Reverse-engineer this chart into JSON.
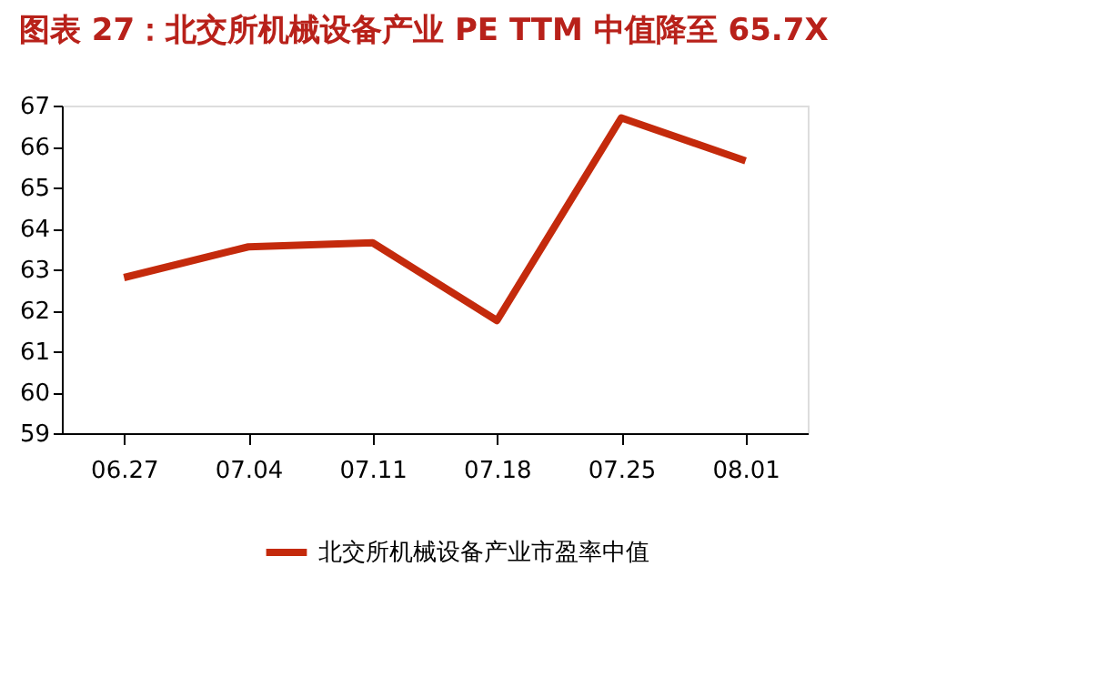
{
  "chart_data": {
    "type": "line",
    "title": "图表 27：北交所机械设备产业 PE TTM 中值降至 65.7X",
    "categories": [
      "06.27",
      "07.04",
      "07.11",
      "07.18",
      "07.25",
      "08.01"
    ],
    "series": [
      {
        "name": "北交所机械设备产业市盈率中值",
        "color": "#c42a0c",
        "values": [
          62.8,
          63.55,
          63.65,
          61.75,
          66.7,
          65.65
        ]
      }
    ],
    "ylim": [
      59,
      67
    ],
    "yticks": [
      59,
      60,
      61,
      62,
      63,
      64,
      65,
      66,
      67
    ],
    "grid": false,
    "legend": "bottom",
    "marker": "none",
    "line_style": "solid"
  }
}
